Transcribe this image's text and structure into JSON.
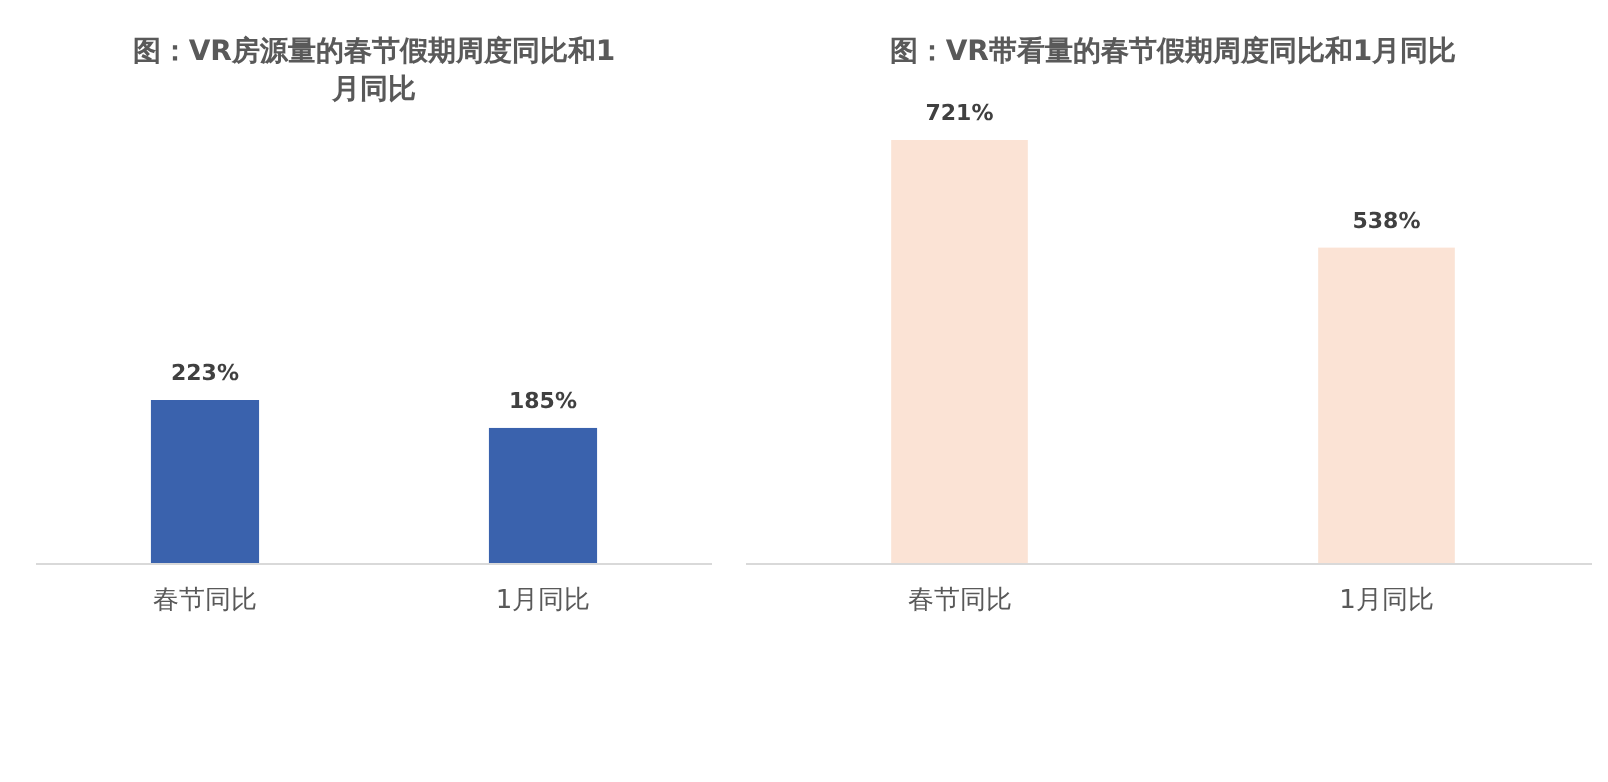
{
  "chart_data": [
    {
      "type": "bar",
      "title": "图：VR房源量的春节假期周度同比和1月同比",
      "categories": [
        "春节同比",
        "1月同比"
      ],
      "values": [
        223,
        185
      ],
      "color": "#3a62ad",
      "value_labels": [
        "223%",
        "185%"
      ]
    },
    {
      "type": "bar",
      "title": "图：VR带看量的春节假期周度同比和1月同比",
      "categories": [
        "春节同比",
        "1月同比"
      ],
      "values": [
        721,
        538
      ],
      "color": "#fbe3d5",
      "value_labels": [
        "721%",
        "538%"
      ]
    }
  ]
}
